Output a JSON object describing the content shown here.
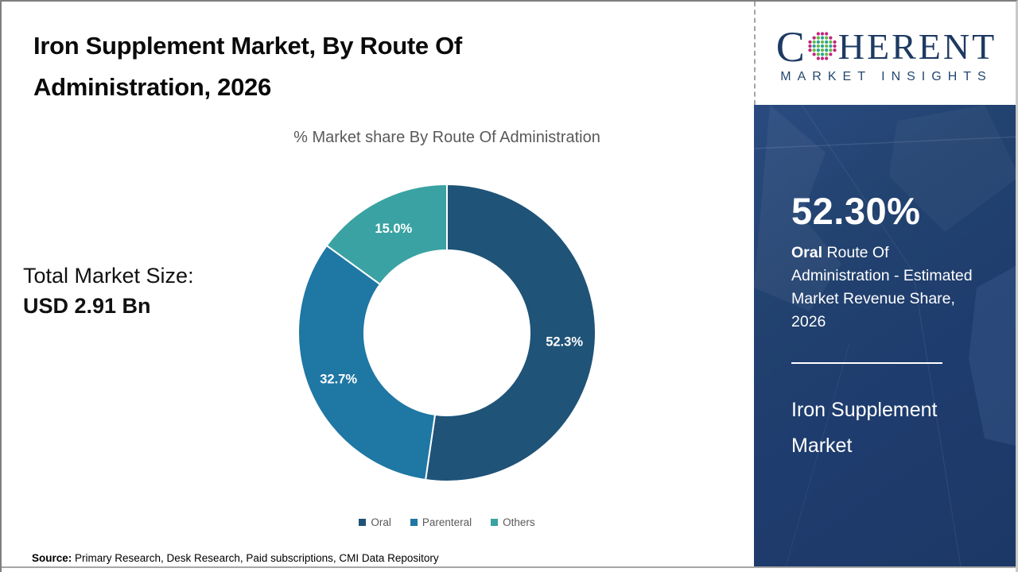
{
  "page": {
    "title": "Iron Supplement Market, By Route Of Administration, 2026",
    "source_label": "Source:",
    "source_text": " Primary Research, Desk Research, Paid subscriptions, CMI Data Repository"
  },
  "logo": {
    "text_c": "C",
    "text_rest": "HERENT",
    "subtext": "MARKET INSIGHTS",
    "navy": "#1e3a63"
  },
  "left_stat": {
    "label": "Total Market Size:",
    "value": "USD 2.91 Bn"
  },
  "chart_data": {
    "type": "pie",
    "donut": true,
    "title": "% Market share By Route Of Administration",
    "categories": [
      "Oral",
      "Parenteral",
      "Others"
    ],
    "values": [
      52.3,
      32.7,
      15.0
    ],
    "labels": [
      "52.3%",
      "32.7%",
      "15.0%"
    ],
    "colors": [
      "#1f5377",
      "#1f77a4",
      "#3aa2a2"
    ],
    "start_angle_deg": 0,
    "direction": "clockwise",
    "legend_position": "bottom",
    "label_color": "#ffffff"
  },
  "sidebar": {
    "stat_value": "52.30%",
    "stat_bold": "Oral",
    "stat_desc": " Route Of Administration - Estimated Market Revenue Share, 2026",
    "market_name": "Iron Supplement Market",
    "bg_color": "#1e3c6e"
  }
}
